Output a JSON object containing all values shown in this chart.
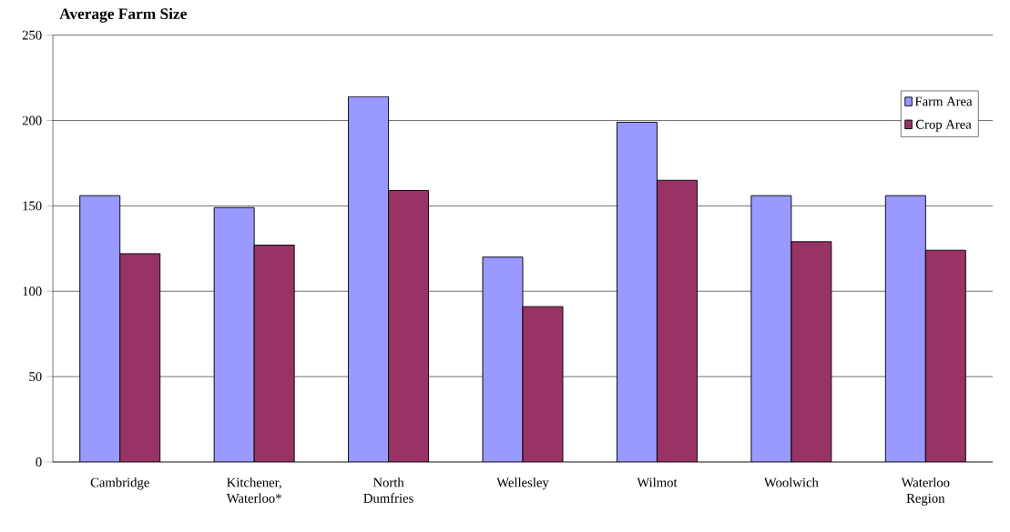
{
  "chart_data": {
    "type": "bar",
    "title": "Average Farm Size",
    "categories": [
      "Cambridge",
      "Kitchener, Waterloo*",
      "North Dumfries",
      "Wellesley",
      "Wilmot",
      "Woolwich",
      "Waterloo Region"
    ],
    "series": [
      {
        "name": "Farm Area",
        "color": "#9999ff",
        "values": [
          156,
          149,
          214,
          120,
          199,
          156,
          156
        ]
      },
      {
        "name": "Crop Area",
        "color": "#993366",
        "values": [
          122,
          127,
          159,
          91,
          165,
          129,
          124
        ]
      }
    ],
    "ylim": [
      0,
      250
    ],
    "yticks": [
      0,
      50,
      100,
      150,
      200,
      250
    ],
    "grid": "y",
    "legend": "top right"
  }
}
